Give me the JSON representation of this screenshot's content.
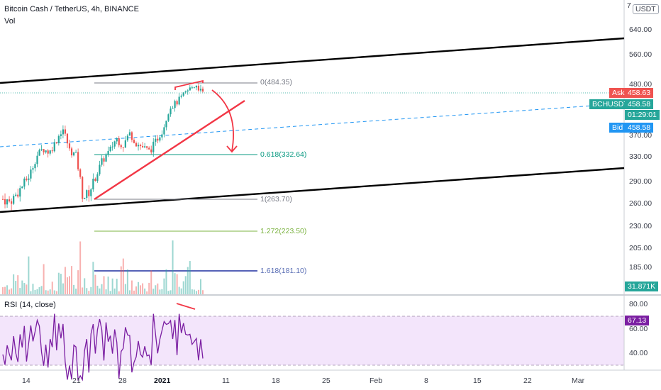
{
  "header": {
    "title": "Bitcoin Cash / TetherUS, 4h, BINANCE",
    "volume_label": "Vol",
    "rsi_label": "RSI (14, close)"
  },
  "price_axis": {
    "currency": "USDT",
    "top_tick": "7",
    "ticks": [
      "640.00",
      "560.00",
      "480.00",
      "370.00",
      "330.00",
      "290.00",
      "260.00",
      "230.00",
      "205.00",
      "185.00"
    ]
  },
  "rsi_axis": {
    "ticks": [
      "80.00",
      "60.00",
      "40.00"
    ],
    "value": "67.13"
  },
  "price_tags": {
    "ask_label": "Ask",
    "ask_value": "458.63",
    "symbol_label": "BCHUSDT",
    "last_value": "458.58",
    "countdown": "01:29:01",
    "bid_label": "Bid",
    "bid_value": "458.58",
    "volume_value": "31.871K"
  },
  "fib_levels": [
    {
      "label": "0(484.35)",
      "color": "#787b86"
    },
    {
      "label": "0.618(332.64)",
      "color": "#089981"
    },
    {
      "label": "1(263.70)",
      "color": "#787b86"
    },
    {
      "label": "1.272(223.50)",
      "color": "#7cb342"
    },
    {
      "label": "1.618(181.10)",
      "color": "#1e2f9f"
    }
  ],
  "time_axis": [
    "14",
    "21",
    "28",
    "2021",
    "11",
    "18",
    "25",
    "Feb",
    "8",
    "15",
    "22",
    "Mar"
  ],
  "colors": {
    "up": "#26a69a",
    "down": "#ef5350",
    "annotation": "#f23645",
    "rsi": "#7b1fa2",
    "rsi_band": "#f3e5fb",
    "ask": "#ef5350",
    "last": "#26a69a",
    "bid": "#2196f3",
    "trend": "#000000"
  },
  "chart_data": {
    "type": "candlestick",
    "symbol": "BCHUSDT",
    "timeframe": "4h",
    "exchange": "BINANCE",
    "last": 458.58,
    "ask": 458.63,
    "bid": 458.58,
    "volume": "31.871K",
    "rsi": 67.13,
    "fibonacci": [
      {
        "ratio": 0,
        "price": 484.35
      },
      {
        "ratio": 0.618,
        "price": 332.64
      },
      {
        "ratio": 1,
        "price": 263.7
      },
      {
        "ratio": 1.272,
        "price": 223.5
      },
      {
        "ratio": 1.618,
        "price": 181.1
      }
    ],
    "price_path": [
      [
        0,
        266
      ],
      [
        1,
        262
      ],
      [
        2,
        272
      ],
      [
        3,
        285
      ],
      [
        4,
        300
      ],
      [
        5,
        330
      ],
      [
        6,
        345
      ],
      [
        7,
        338
      ],
      [
        8,
        360
      ],
      [
        9,
        385
      ],
      [
        10,
        342
      ],
      [
        11,
        332
      ],
      [
        12,
        268
      ],
      [
        13,
        276
      ],
      [
        14,
        300
      ],
      [
        15,
        325
      ],
      [
        16,
        340
      ],
      [
        17,
        365
      ],
      [
        18,
        350
      ],
      [
        19,
        375
      ],
      [
        20,
        355
      ],
      [
        21,
        348
      ],
      [
        22,
        340
      ],
      [
        23,
        360
      ],
      [
        24,
        382
      ],
      [
        25,
        430
      ],
      [
        26,
        440
      ],
      [
        27,
        455
      ],
      [
        28,
        470
      ],
      [
        29,
        480
      ],
      [
        30,
        459
      ]
    ]
  }
}
